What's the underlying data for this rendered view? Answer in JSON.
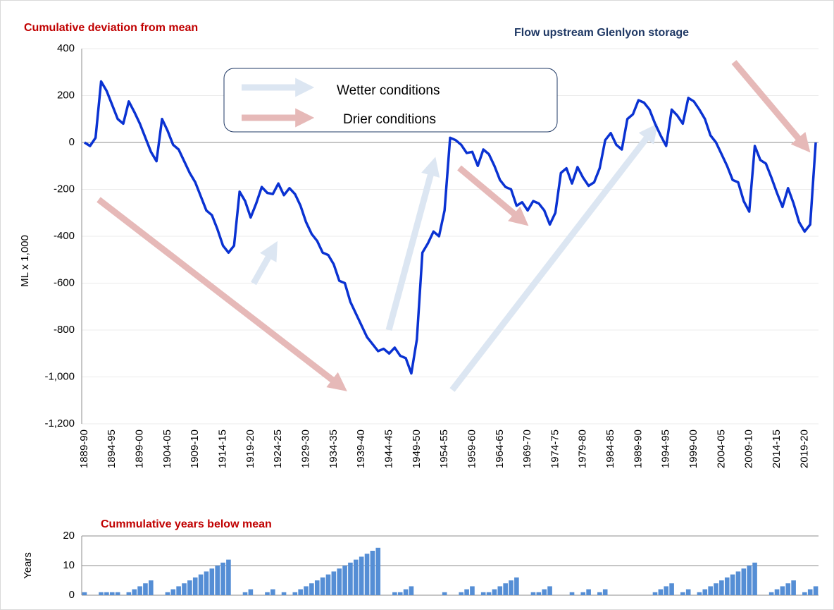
{
  "chart_data": [
    {
      "type": "line",
      "title": "Flow upstream Glenlyon storage",
      "subtitle": "Cumulative deviation from mean",
      "y_label": "ML x 1,000",
      "annotations": [
        "Wetter conditions",
        "Drier conditions"
      ],
      "color": "#0a32d2",
      "grid": true,
      "ylim": [
        -1200,
        400
      ],
      "yticks": [
        {
          "value": -1200,
          "label": "-1,200"
        },
        {
          "value": -1000,
          "label": "-1,000"
        },
        -800,
        -600,
        -400,
        -200,
        0,
        200,
        400
      ],
      "categories": [
        "1889-90",
        null,
        null,
        null,
        null,
        "1894-95",
        null,
        null,
        null,
        null,
        "1899-00",
        null,
        null,
        null,
        null,
        "1904-05",
        null,
        null,
        null,
        null,
        "1909-10",
        null,
        null,
        null,
        null,
        "1914-15",
        null,
        null,
        null,
        null,
        "1919-20",
        null,
        null,
        null,
        null,
        "1924-25",
        null,
        null,
        null,
        null,
        "1929-30",
        null,
        null,
        null,
        null,
        "1934-35",
        null,
        null,
        null,
        null,
        "1939-40",
        null,
        null,
        null,
        null,
        "1944-45",
        null,
        null,
        null,
        null,
        "1949-50",
        null,
        null,
        null,
        null,
        "1954-55",
        null,
        null,
        null,
        null,
        "1959-60",
        null,
        null,
        null,
        null,
        "1964-65",
        null,
        null,
        null,
        null,
        "1969-70",
        null,
        null,
        null,
        null,
        "1974-75",
        null,
        null,
        null,
        null,
        "1979-80",
        null,
        null,
        null,
        null,
        "1984-85",
        null,
        null,
        null,
        null,
        "1989-90",
        null,
        null,
        null,
        null,
        "1994-95",
        null,
        null,
        null,
        null,
        "1999-00",
        null,
        null,
        null,
        null,
        "2004-05",
        null,
        null,
        null,
        null,
        "2009-10",
        null,
        null,
        null,
        null,
        "2014-15",
        null,
        null,
        null,
        null,
        "2019-20",
        null,
        null
      ],
      "values": [
        0,
        -15,
        20,
        260,
        220,
        160,
        100,
        80,
        175,
        130,
        80,
        20,
        -40,
        -80,
        100,
        50,
        -10,
        -30,
        -80,
        -130,
        -170,
        -230,
        -290,
        -310,
        -370,
        -440,
        -470,
        -440,
        -210,
        -250,
        -320,
        -260,
        -190,
        -215,
        -220,
        -175,
        -225,
        -195,
        -220,
        -270,
        -340,
        -390,
        -420,
        -470,
        -480,
        -520,
        -590,
        -600,
        -680,
        -730,
        -780,
        -830,
        -860,
        -890,
        -880,
        -900,
        -875,
        -910,
        -920,
        -985,
        -840,
        -470,
        -430,
        -380,
        -400,
        -290,
        20,
        10,
        -10,
        -45,
        -40,
        -100,
        -30,
        -50,
        -100,
        -160,
        -190,
        -200,
        -270,
        -255,
        -290,
        -250,
        -260,
        -290,
        -350,
        -300,
        -130,
        -110,
        -175,
        -105,
        -150,
        -185,
        -170,
        -110,
        10,
        40,
        -10,
        -30,
        100,
        120,
        180,
        170,
        140,
        80,
        30,
        -15,
        140,
        115,
        80,
        190,
        175,
        140,
        100,
        30,
        0,
        -50,
        -100,
        -160,
        -170,
        -250,
        -295,
        -15,
        -75,
        -90,
        -150,
        -215,
        -275,
        -195,
        -260,
        -340,
        -380,
        -350,
        0
      ]
    },
    {
      "type": "bar",
      "title": "Cummulative years below mean",
      "y_label": "Years",
      "color": "#558ed5",
      "grid": true,
      "ylim": [
        0,
        20
      ],
      "yticks": [
        0,
        10,
        20
      ],
      "values": [
        1,
        0,
        0,
        1,
        1,
        1,
        1,
        0,
        1,
        2,
        3,
        4,
        5,
        0,
        0,
        1,
        2,
        3,
        4,
        5,
        6,
        7,
        8,
        9,
        10,
        11,
        12,
        0,
        0,
        1,
        2,
        0,
        0,
        1,
        2,
        0,
        1,
        0,
        1,
        2,
        3,
        4,
        5,
        6,
        7,
        8,
        9,
        10,
        11,
        12,
        13,
        14,
        15,
        16,
        0,
        0,
        1,
        1,
        2,
        3,
        0,
        0,
        0,
        0,
        0,
        1,
        0,
        0,
        1,
        2,
        3,
        0,
        1,
        1,
        2,
        3,
        4,
        5,
        6,
        0,
        0,
        1,
        1,
        2,
        3,
        0,
        0,
        0,
        1,
        0,
        1,
        2,
        0,
        1,
        2,
        0,
        0,
        0,
        0,
        0,
        0,
        0,
        0,
        1,
        2,
        3,
        4,
        0,
        1,
        2,
        0,
        1,
        2,
        3,
        4,
        5,
        6,
        7,
        8,
        9,
        10,
        11,
        0,
        0,
        1,
        2,
        3,
        4,
        5,
        0,
        1,
        2,
        3
      ]
    }
  ]
}
